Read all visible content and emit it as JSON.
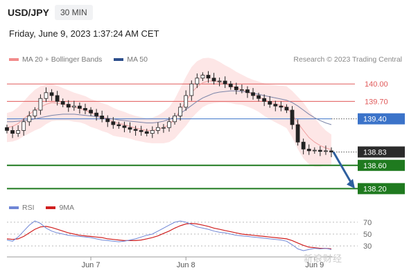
{
  "header": {
    "symbol": "USD/JPY",
    "timeframe": "30 MIN",
    "datetime": "Friday, June 9, 2023 1:37:24 AM CET"
  },
  "legend": {
    "items": [
      {
        "label": "MA 20 + Bollinger Bands",
        "color": "#f28b8b"
      },
      {
        "label": "MA 50",
        "color": "#2d4f8c"
      }
    ],
    "credit": "Research © 2023 Trading Central"
  },
  "rsi_legend": {
    "items": [
      {
        "label": "RSI",
        "color": "#6f86d6"
      },
      {
        "label": "9MA",
        "color": "#d01f1f"
      }
    ]
  },
  "watermark": "新浪财经",
  "colors": {
    "resistance": "#e05a5a",
    "current": "#3b73c9",
    "support": "#1f7a1f",
    "price_tag": "#2b2b2b",
    "bollinger_fill": "#fde3e3",
    "candle": "#222222",
    "arrow": "#2e5f9e"
  },
  "chart_data": [
    {
      "type": "line",
      "title": "USD/JPY 30 MIN",
      "x_ticks": [
        "Jun 7",
        "Jun 8",
        "Jun 9"
      ],
      "y_range": [
        138.05,
        140.3
      ],
      "levels": [
        {
          "value": 140.0,
          "label": "140.00",
          "kind": "resistance"
        },
        {
          "value": 139.7,
          "label": "139.70",
          "kind": "resistance"
        },
        {
          "value": 139.4,
          "label": "139.40",
          "kind": "current-resistance"
        },
        {
          "value": 138.83,
          "label": "138.83",
          "kind": "last-price"
        },
        {
          "value": 138.6,
          "label": "138.60",
          "kind": "support"
        },
        {
          "value": 138.2,
          "label": "138.20",
          "kind": "support"
        }
      ],
      "series": [
        {
          "name": "Price",
          "values": [
            139.2,
            139.15,
            139.2,
            139.35,
            139.45,
            139.55,
            139.75,
            139.85,
            139.8,
            139.7,
            139.65,
            139.6,
            139.62,
            139.58,
            139.55,
            139.5,
            139.45,
            139.4,
            139.35,
            139.3,
            139.28,
            139.25,
            139.22,
            139.2,
            139.18,
            139.15,
            139.2,
            139.25,
            139.25,
            139.35,
            139.45,
            139.6,
            139.8,
            140.0,
            140.1,
            140.15,
            140.1,
            140.05,
            140.05,
            140.0,
            139.95,
            139.9,
            139.9,
            139.85,
            139.8,
            139.75,
            139.7,
            139.65,
            139.62,
            139.6,
            139.55,
            139.3,
            139.0,
            138.88,
            138.85,
            138.86,
            138.84,
            138.85,
            138.83
          ]
        },
        {
          "name": "MA 20",
          "values": [
            139.25,
            139.27,
            139.32,
            139.4,
            139.48,
            139.55,
            139.6,
            139.65,
            139.68,
            139.67,
            139.65,
            139.63,
            139.6,
            139.58,
            139.55,
            139.5,
            139.47,
            139.43,
            139.4,
            139.35,
            139.32,
            139.3,
            139.27,
            139.24,
            139.22,
            139.2,
            139.2,
            139.22,
            139.25,
            139.3,
            139.4,
            139.55,
            139.7,
            139.85,
            139.95,
            140.02,
            140.05,
            140.05,
            140.03,
            140.0,
            139.97,
            139.93,
            139.9,
            139.86,
            139.82,
            139.78,
            139.73,
            139.69,
            139.66,
            139.63,
            139.6,
            139.48,
            139.33,
            139.2,
            139.08,
            139.0,
            138.94,
            138.9,
            138.87
          ]
        },
        {
          "name": "MA 50",
          "values": [
            139.35,
            139.35,
            139.36,
            139.37,
            139.38,
            139.4,
            139.42,
            139.44,
            139.46,
            139.47,
            139.48,
            139.48,
            139.48,
            139.47,
            139.46,
            139.45,
            139.44,
            139.42,
            139.41,
            139.4,
            139.38,
            139.37,
            139.36,
            139.35,
            139.34,
            139.33,
            139.33,
            139.34,
            139.36,
            139.39,
            139.43,
            139.49,
            139.56,
            139.63,
            139.7,
            139.76,
            139.8,
            139.84,
            139.86,
            139.87,
            139.88,
            139.88,
            139.87,
            139.86,
            139.84,
            139.82,
            139.8,
            139.78,
            139.76,
            139.74,
            139.72,
            139.68,
            139.62,
            139.55,
            139.48,
            139.42,
            139.37,
            139.33,
            139.3
          ]
        },
        {
          "name": "Projection",
          "values": [
            138.83,
            138.2
          ]
        }
      ]
    },
    {
      "type": "line",
      "title": "RSI",
      "y_ticks": [
        "70",
        "50",
        "30"
      ],
      "y_range": [
        15,
        85
      ],
      "series": [
        {
          "name": "RSI",
          "values": [
            40,
            38,
            45,
            55,
            65,
            72,
            68,
            60,
            55,
            52,
            50,
            48,
            47,
            46,
            45,
            44,
            42,
            40,
            39,
            38,
            37,
            38,
            40,
            42,
            45,
            48,
            50,
            55,
            60,
            65,
            70,
            72,
            70,
            66,
            62,
            60,
            58,
            55,
            53,
            52,
            50,
            48,
            47,
            46,
            45,
            44,
            43,
            42,
            41,
            40,
            38,
            32,
            25,
            22,
            24,
            26,
            25,
            26,
            24
          ]
        },
        {
          "name": "9MA",
          "values": [
            42,
            41,
            42,
            46,
            52,
            58,
            62,
            63,
            61,
            58,
            55,
            52,
            50,
            48,
            47,
            46,
            45,
            44,
            42,
            41,
            40,
            39,
            39,
            39,
            40,
            42,
            44,
            47,
            51,
            55,
            60,
            64,
            67,
            68,
            67,
            65,
            63,
            60,
            58,
            56,
            54,
            52,
            50,
            49,
            48,
            47,
            46,
            45,
            44,
            43,
            42,
            39,
            35,
            31,
            28,
            27,
            26,
            26,
            25
          ]
        }
      ]
    }
  ]
}
